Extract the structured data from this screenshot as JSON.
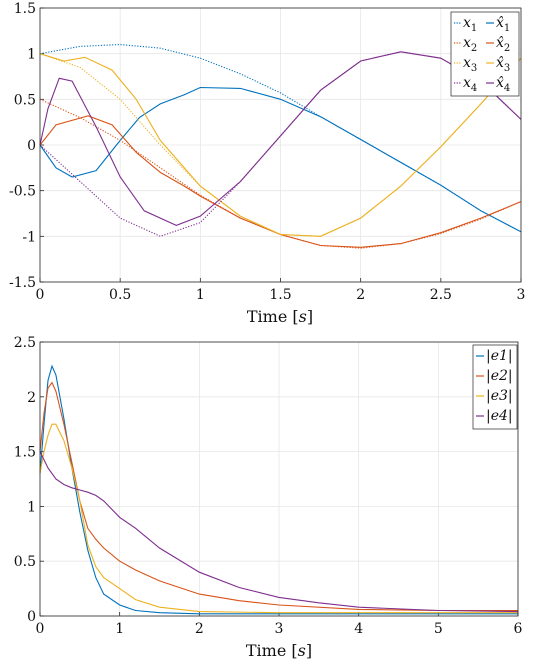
{
  "chart_data": [
    {
      "type": "line",
      "xlabel": "Time [s]",
      "xlim": [
        0,
        3
      ],
      "ylim": [
        -1.5,
        1.5
      ],
      "xticks": [
        "0",
        "0.5",
        "1",
        "1.5",
        "2",
        "2.5",
        "3"
      ],
      "yticks": [
        "-1.5",
        "-1",
        "-0.5",
        "0",
        "0.5",
        "1",
        "1.5"
      ],
      "grid": true,
      "legend_position": "top-right",
      "legend": [
        "x1",
        "x̂1",
        "x2",
        "x̂2",
        "x3",
        "x̂3",
        "x4",
        "x̂4"
      ],
      "series": [
        {
          "name": "x1",
          "color": "#0072BD",
          "style": "dotted",
          "x": [
            0,
            0.25,
            0.5,
            0.75,
            1.0,
            1.25,
            1.5,
            1.75,
            2.0,
            2.25,
            2.5,
            2.75,
            3.0
          ],
          "y": [
            1.0,
            1.08,
            1.1,
            1.06,
            0.95,
            0.78,
            0.57,
            0.31,
            0.06,
            -0.19,
            -0.44,
            -0.72,
            -0.95
          ]
        },
        {
          "name": "x̂1",
          "color": "#0072BD",
          "style": "solid",
          "x": [
            0,
            0.1,
            0.2,
            0.35,
            0.5,
            0.62,
            0.75,
            0.9,
            1.0,
            1.25,
            1.5,
            1.75,
            2.0,
            2.25,
            2.5,
            2.75,
            3.0
          ],
          "y": [
            0.0,
            -0.25,
            -0.35,
            -0.28,
            0.05,
            0.3,
            0.45,
            0.55,
            0.63,
            0.62,
            0.5,
            0.31,
            0.06,
            -0.19,
            -0.44,
            -0.72,
            -0.95
          ]
        },
        {
          "name": "x2",
          "color": "#D95319",
          "style": "dotted",
          "x": [
            0,
            0.25,
            0.5,
            0.75,
            1.0,
            1.25,
            1.5,
            1.75,
            2.0,
            2.25,
            2.5,
            2.75,
            3.0
          ],
          "y": [
            0.5,
            0.3,
            0.05,
            -0.25,
            -0.55,
            -0.8,
            -0.98,
            -1.1,
            -1.13,
            -1.08,
            -0.97,
            -0.81,
            -0.62
          ]
        },
        {
          "name": "x̂2",
          "color": "#D95319",
          "style": "solid",
          "x": [
            0,
            0.1,
            0.3,
            0.45,
            0.6,
            0.75,
            0.9,
            1.0,
            1.25,
            1.5,
            1.75,
            2.0,
            2.25,
            2.5,
            2.75,
            3.0
          ],
          "y": [
            0.0,
            0.22,
            0.32,
            0.22,
            -0.08,
            -0.3,
            -0.45,
            -0.56,
            -0.8,
            -0.98,
            -1.1,
            -1.12,
            -1.08,
            -0.96,
            -0.8,
            -0.62
          ]
        },
        {
          "name": "x3",
          "color": "#EDB120",
          "style": "dotted",
          "x": [
            0,
            0.25,
            0.5,
            0.75,
            1.0,
            1.25,
            1.5,
            1.75,
            2.0,
            2.25,
            2.5,
            2.75,
            3.0
          ],
          "y": [
            1.0,
            0.85,
            0.5,
            0.0,
            -0.45,
            -0.78,
            -0.98,
            -1.0,
            -0.8,
            -0.45,
            -0.02,
            0.45,
            0.95
          ]
        },
        {
          "name": "x̂3",
          "color": "#EDB120",
          "style": "solid",
          "x": [
            0,
            0.15,
            0.28,
            0.45,
            0.6,
            0.75,
            1.0,
            1.25,
            1.5,
            1.75,
            2.0,
            2.25,
            2.5,
            2.75,
            3.0
          ],
          "y": [
            1.0,
            0.92,
            0.96,
            0.82,
            0.5,
            0.05,
            -0.45,
            -0.78,
            -0.98,
            -1.0,
            -0.8,
            -0.45,
            -0.02,
            0.45,
            0.95
          ]
        },
        {
          "name": "x4",
          "color": "#7E2F8E",
          "style": "dotted",
          "x": [
            0,
            0.25,
            0.5,
            0.75,
            1.0,
            1.25,
            1.5,
            1.75,
            2.0,
            2.25,
            2.5,
            2.75,
            3.0
          ],
          "y": [
            0.0,
            -0.4,
            -0.8,
            -1.0,
            -0.85,
            -0.4,
            0.1,
            0.6,
            0.92,
            1.02,
            0.95,
            0.7,
            0.28
          ]
        },
        {
          "name": "x̂4",
          "color": "#7E2F8E",
          "style": "solid",
          "x": [
            0,
            0.05,
            0.12,
            0.2,
            0.35,
            0.5,
            0.65,
            0.85,
            1.0,
            1.25,
            1.5,
            1.75,
            2.0,
            2.25,
            2.5,
            2.75,
            3.0
          ],
          "y": [
            0.0,
            0.4,
            0.73,
            0.7,
            0.2,
            -0.35,
            -0.72,
            -0.88,
            -0.78,
            -0.4,
            0.1,
            0.6,
            0.92,
            1.02,
            0.95,
            0.7,
            0.28
          ]
        }
      ]
    },
    {
      "type": "line",
      "xlabel": "Time [s]",
      "xlim": [
        0,
        6
      ],
      "ylim": [
        0,
        2.5
      ],
      "xticks": [
        "0",
        "1",
        "2",
        "3",
        "4",
        "5",
        "6"
      ],
      "yticks": [
        "0",
        "0.5",
        "1",
        "1.5",
        "2",
        "2.5"
      ],
      "grid": true,
      "legend_position": "top-right",
      "legend": [
        "|e1|",
        "|e2|",
        "|e3|",
        "|e4|"
      ],
      "series": [
        {
          "name": "|e1|",
          "color": "#0072BD",
          "x": [
            0,
            0.05,
            0.1,
            0.15,
            0.2,
            0.3,
            0.4,
            0.5,
            0.6,
            0.7,
            0.8,
            1.0,
            1.2,
            1.5,
            2.0,
            3.0,
            4.0,
            5.0,
            6.0
          ],
          "y": [
            1.3,
            1.75,
            2.15,
            2.28,
            2.2,
            1.8,
            1.35,
            0.95,
            0.6,
            0.35,
            0.2,
            0.1,
            0.05,
            0.03,
            0.02,
            0.02,
            0.02,
            0.02,
            0.02
          ]
        },
        {
          "name": "|e2|",
          "color": "#D95319",
          "x": [
            0,
            0.05,
            0.1,
            0.15,
            0.2,
            0.3,
            0.4,
            0.5,
            0.6,
            0.7,
            0.8,
            1.0,
            1.2,
            1.5,
            2.0,
            2.5,
            3.0,
            4.0,
            5.0,
            6.0
          ],
          "y": [
            1.5,
            1.85,
            2.08,
            2.13,
            2.05,
            1.75,
            1.4,
            1.05,
            0.8,
            0.7,
            0.62,
            0.5,
            0.42,
            0.32,
            0.2,
            0.14,
            0.1,
            0.06,
            0.05,
            0.05
          ]
        },
        {
          "name": "|e3|",
          "color": "#EDB120",
          "x": [
            0,
            0.05,
            0.1,
            0.15,
            0.2,
            0.3,
            0.4,
            0.5,
            0.6,
            0.7,
            0.8,
            1.0,
            1.2,
            1.5,
            2.0,
            3.0,
            4.0,
            5.0,
            6.0
          ],
          "y": [
            1.3,
            1.5,
            1.65,
            1.75,
            1.75,
            1.6,
            1.35,
            1.05,
            0.65,
            0.45,
            0.35,
            0.25,
            0.15,
            0.08,
            0.04,
            0.03,
            0.03,
            0.03,
            0.03
          ]
        },
        {
          "name": "|e4|",
          "color": "#7E2F8E",
          "x": [
            0,
            0.1,
            0.2,
            0.3,
            0.4,
            0.5,
            0.6,
            0.7,
            0.8,
            1.0,
            1.2,
            1.5,
            2.0,
            2.5,
            3.0,
            3.5,
            4.0,
            5.0,
            6.0
          ],
          "y": [
            1.5,
            1.35,
            1.25,
            1.2,
            1.17,
            1.15,
            1.13,
            1.1,
            1.05,
            0.9,
            0.8,
            0.62,
            0.4,
            0.26,
            0.17,
            0.12,
            0.08,
            0.05,
            0.04
          ]
        }
      ]
    }
  ]
}
